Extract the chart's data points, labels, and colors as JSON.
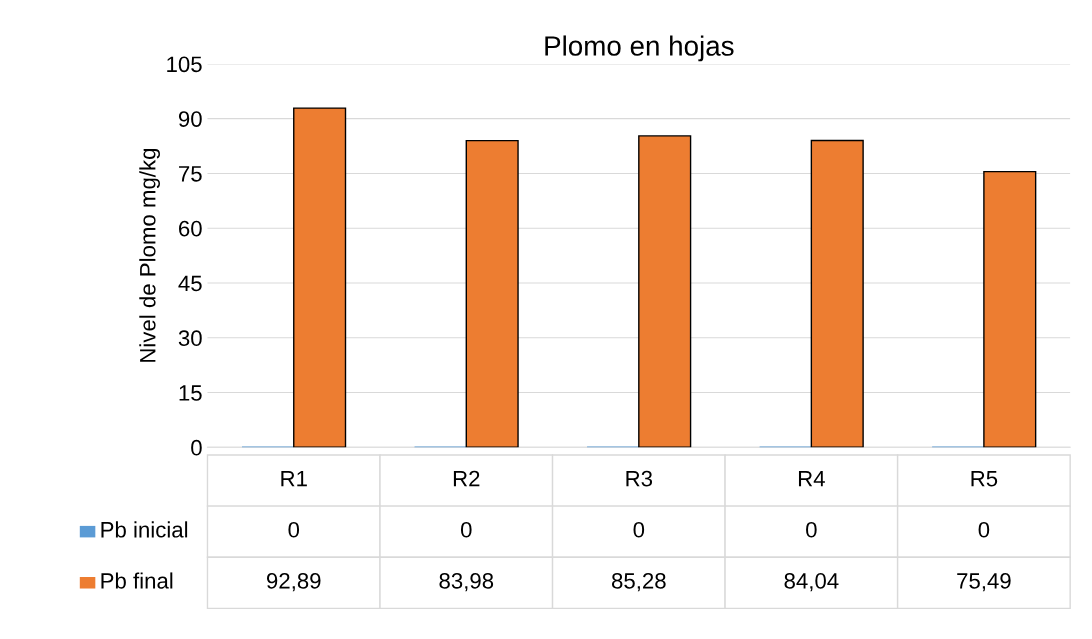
{
  "chart_data": {
    "type": "bar",
    "title": "Plomo en hojas",
    "ylabel": "Nivel de Plomo mg/kg",
    "categories": [
      "R1",
      "R2",
      "R3",
      "R4",
      "R5"
    ],
    "series": [
      {
        "name": "Pb inicial",
        "color": "#5b9bd5",
        "values": [
          0,
          0,
          0,
          0,
          0
        ],
        "value_labels": [
          "0",
          "0",
          "0",
          "0",
          "0"
        ]
      },
      {
        "name": "Pb final",
        "color": "#ed7d31",
        "values": [
          92.89,
          83.98,
          85.28,
          84.04,
          75.49
        ],
        "value_labels": [
          "92,89",
          "83,98",
          "85,28",
          "84,04",
          "75,49"
        ]
      }
    ],
    "ylim": [
      0,
      105
    ],
    "yticks": [
      0,
      15,
      30,
      45,
      60,
      75,
      90,
      105
    ],
    "grid": "y",
    "legend": "bottom"
  }
}
